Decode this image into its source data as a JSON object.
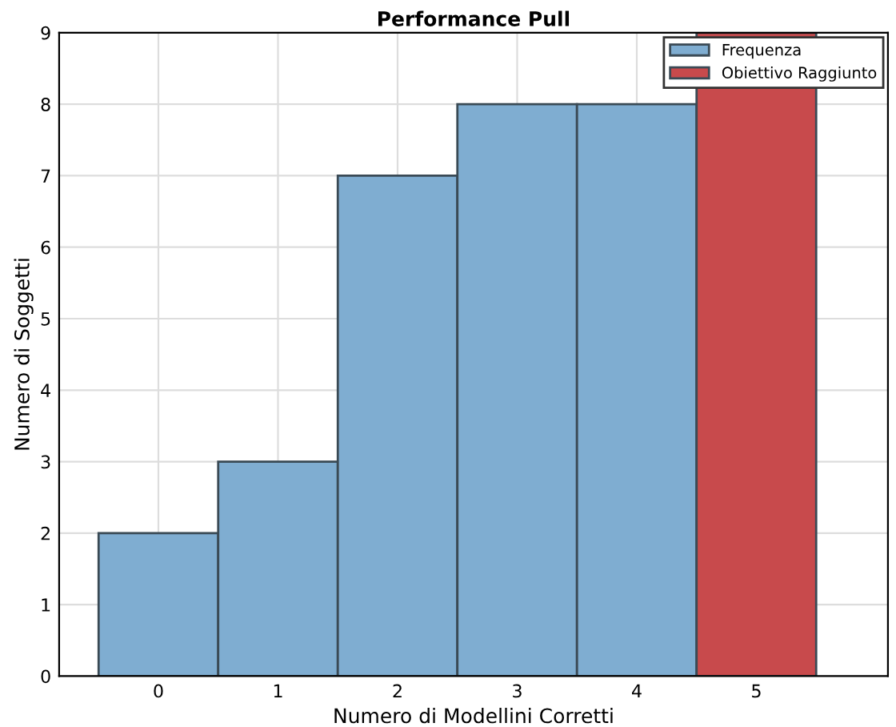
{
  "chart_data": {
    "type": "bar",
    "title": "Performance Pull",
    "xlabel": "Numero di Modellini Corretti",
    "ylabel": "Numero di Soggetti",
    "x": [
      0,
      1,
      2,
      3,
      4,
      5
    ],
    "series": [
      {
        "name": "Frequenza",
        "color": "#7fadd1",
        "values": [
          2,
          3,
          7,
          8,
          8,
          null
        ]
      },
      {
        "name": "Obiettivo Raggiunto",
        "color": "#c84a4c",
        "values": [
          null,
          null,
          null,
          null,
          null,
          9
        ]
      }
    ],
    "xlim": [
      -0.83,
      6.1
    ],
    "xticks": [
      0,
      1,
      2,
      3,
      4,
      5
    ],
    "ylim": [
      0,
      9
    ],
    "yticks": [
      0,
      1,
      2,
      3,
      4,
      5,
      6,
      7,
      8,
      9
    ],
    "grid": true,
    "legend": "top right"
  }
}
